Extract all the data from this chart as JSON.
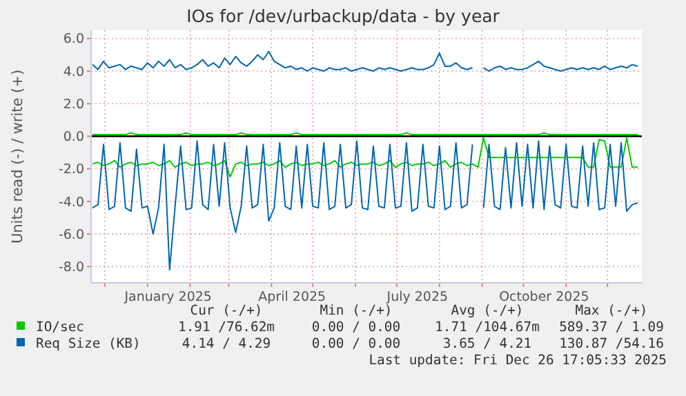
{
  "chart_data": {
    "type": "line",
    "title": "IOs for /dev/urbackup/data - by year",
    "ylabel": "Units read (-) / write (+)",
    "x": [
      "2024-11-22",
      "2024-11-26",
      "2024-11-30",
      "2024-12-04",
      "2024-12-08",
      "2024-12-12",
      "2024-12-16",
      "2024-12-20",
      "2024-12-24",
      "2024-12-28",
      "2025-01-01",
      "2025-01-05",
      "2025-01-09",
      "2025-01-13",
      "2025-01-17",
      "2025-01-21",
      "2025-01-25",
      "2025-01-29",
      "2025-02-02",
      "2025-02-06",
      "2025-02-10",
      "2025-02-14",
      "2025-02-18",
      "2025-02-22",
      "2025-02-26",
      "2025-03-02",
      "2025-03-06",
      "2025-03-10",
      "2025-03-14",
      "2025-03-18",
      "2025-03-22",
      "2025-03-26",
      "2025-03-30",
      "2025-04-03",
      "2025-04-07",
      "2025-04-11",
      "2025-04-15",
      "2025-04-19",
      "2025-04-23",
      "2025-04-27",
      "2025-05-01",
      "2025-05-05",
      "2025-05-09",
      "2025-05-13",
      "2025-05-17",
      "2025-05-21",
      "2025-05-25",
      "2025-05-29",
      "2025-06-02",
      "2025-06-06",
      "2025-06-10",
      "2025-06-14",
      "2025-06-18",
      "2025-06-22",
      "2025-06-26",
      "2025-06-30",
      "2025-07-04",
      "2025-07-08",
      "2025-07-12",
      "2025-07-16",
      "2025-07-20",
      "2025-07-24",
      "2025-07-28",
      "2025-08-01",
      "2025-08-05",
      "2025-08-09",
      "2025-08-13",
      "2025-08-17",
      "2025-08-21",
      "2025-08-25",
      "2025-08-29",
      "2025-09-02",
      "2025-09-06",
      "2025-09-10",
      "2025-09-14",
      "2025-09-18",
      "2025-09-22",
      "2025-09-26",
      "2025-09-30",
      "2025-10-04",
      "2025-10-08",
      "2025-10-12",
      "2025-10-16",
      "2025-10-20",
      "2025-10-24",
      "2025-10-28",
      "2025-11-01",
      "2025-11-05",
      "2025-11-09",
      "2025-11-13",
      "2025-11-17",
      "2025-11-21",
      "2025-11-25",
      "2025-11-29",
      "2025-12-03",
      "2025-12-07",
      "2025-12-11",
      "2025-12-15",
      "2025-12-19",
      "2025-12-23"
    ],
    "series": [
      {
        "name": "IO/sec",
        "color": "#00cc00",
        "values": [
          0.1,
          0.1,
          0.1,
          0.1,
          0.1,
          0.1,
          0.1,
          0.2,
          0.1,
          0.1,
          0.1,
          0.1,
          0.1,
          0.1,
          0.1,
          0.1,
          0.1,
          0.2,
          0.1,
          0.1,
          0.1,
          0.1,
          0.1,
          0.1,
          0.1,
          0.1,
          0.1,
          0.2,
          0.1,
          0.1,
          0.1,
          0.1,
          0.1,
          0.1,
          0.1,
          0.1,
          0.1,
          0.2,
          0.1,
          0.1,
          0.1,
          0.1,
          0.1,
          0.1,
          0.1,
          0.1,
          0.1,
          0.1,
          0.1,
          0.1,
          0.1,
          0.1,
          0.1,
          0.1,
          0.1,
          0.1,
          0.1,
          0.2,
          0.1,
          0.1,
          0.1,
          0.1,
          0.1,
          0.1,
          0.1,
          0.1,
          0.1,
          0.1,
          0.1,
          0.1,
          0.1,
          0.1,
          0.1,
          0.1,
          0.1,
          0.1,
          0.1,
          0.1,
          0.1,
          0.1,
          0.1,
          0.1,
          0.2,
          0.1,
          0.1,
          0.1,
          0.1,
          0.1,
          0.1,
          0.1,
          0.1,
          0.1,
          0.1,
          0.1,
          0.1,
          0.1,
          0.1,
          0.1,
          0.1,
          0.1
        ]
      },
      {
        "color": "#00cc00",
        "values": [
          -1.7,
          -1.6,
          -1.8,
          -1.7,
          -1.5,
          -1.9,
          -1.7,
          -1.6,
          -1.8,
          -1.7,
          -1.7,
          -1.6,
          -1.8,
          -1.7,
          -1.5,
          -1.9,
          -1.7,
          -1.6,
          -1.8,
          -1.7,
          -1.7,
          -1.6,
          -1.8,
          -1.7,
          -1.5,
          -2.5,
          -1.7,
          -1.6,
          -1.8,
          -1.7,
          -1.7,
          -1.6,
          -1.8,
          -1.7,
          -1.5,
          -1.9,
          -1.7,
          -1.6,
          -1.8,
          -1.7,
          -1.7,
          -1.6,
          -1.8,
          -1.7,
          -1.5,
          -1.9,
          -1.7,
          -1.6,
          -1.8,
          -1.7,
          -1.7,
          -1.6,
          -1.8,
          -1.7,
          -1.5,
          -1.9,
          -1.7,
          -1.6,
          -1.8,
          -1.7,
          -1.7,
          -1.6,
          -1.8,
          -1.7,
          -1.5,
          -1.9,
          -1.7,
          -1.6,
          -1.8,
          -1.7,
          -1.9,
          -0.1,
          -1.3,
          -1.3,
          -1.3,
          -1.3,
          -1.3,
          -1.3,
          -1.3,
          -1.3,
          -1.3,
          -1.3,
          -1.3,
          -1.3,
          -1.3,
          -1.3,
          -1.3,
          -1.3,
          -1.3,
          -1.3,
          -1.9,
          -1.9,
          -0.2,
          -0.3,
          -1.9,
          -1.9,
          -1.9,
          -0.1,
          -1.9,
          -1.9
        ]
      },
      {
        "name": "Req Size (KB)",
        "color": "#0066b3",
        "values": [
          4.4,
          4.1,
          4.6,
          4.2,
          4.3,
          4.4,
          4.1,
          4.3,
          4.2,
          4.1,
          4.5,
          4.2,
          4.6,
          4.3,
          4.7,
          4.2,
          4.4,
          4.1,
          4.2,
          4.4,
          4.7,
          4.3,
          4.5,
          4.2,
          4.8,
          4.4,
          4.9,
          4.5,
          4.3,
          4.6,
          5.0,
          4.7,
          5.2,
          4.6,
          4.4,
          4.2,
          4.3,
          4.1,
          4.2,
          4.0,
          4.2,
          4.1,
          4.0,
          4.2,
          4.1,
          4.1,
          4.2,
          4.0,
          4.1,
          4.2,
          4.1,
          4.0,
          4.2,
          4.1,
          4.2,
          4.1,
          4.0,
          4.1,
          4.2,
          4.1,
          4.1,
          4.2,
          4.4,
          5.1,
          4.3,
          4.3,
          4.5,
          4.2,
          4.1,
          4.2,
          null,
          4.2,
          4.0,
          4.2,
          4.3,
          4.1,
          4.2,
          4.1,
          4.1,
          4.2,
          4.4,
          4.6,
          4.3,
          4.2,
          4.1,
          4.0,
          4.1,
          4.2,
          4.1,
          4.2,
          4.1,
          4.2,
          4.1,
          4.3,
          4.1,
          4.2,
          4.3,
          4.2,
          4.4,
          4.3
        ]
      },
      {
        "color": "#0066b3",
        "values": [
          -4.4,
          -4.2,
          -0.5,
          -4.5,
          -4.3,
          -0.4,
          -4.4,
          -4.6,
          -0.8,
          -4.4,
          -4.3,
          -6.0,
          -4.4,
          -0.5,
          -8.2,
          -4.3,
          -0.6,
          -4.5,
          -4.4,
          -0.3,
          -4.2,
          -4.5,
          -0.5,
          -4.3,
          -0.4,
          -4.4,
          -5.9,
          -4.3,
          -0.6,
          -4.4,
          -4.2,
          -0.5,
          -5.2,
          -4.4,
          -0.4,
          -4.3,
          -4.5,
          -0.6,
          -4.4,
          -0.5,
          -4.3,
          -4.4,
          -0.4,
          -4.5,
          -4.3,
          -0.5,
          -4.4,
          -4.2,
          -0.3,
          -4.4,
          -4.5,
          -0.6,
          -4.3,
          -4.4,
          -0.5,
          -4.4,
          -4.3,
          -0.4,
          -4.6,
          -4.4,
          -0.5,
          -4.3,
          -4.4,
          -0.6,
          -4.5,
          -4.3,
          -0.4,
          -4.4,
          -4.2,
          -0.5,
          null,
          -4.4,
          -0.5,
          -4.3,
          -4.5,
          -0.7,
          -4.4,
          -0.4,
          -4.3,
          -0.5,
          -4.4,
          -0.3,
          -4.5,
          -0.6,
          -4.2,
          -4.4,
          -0.5,
          -4.3,
          -4.4,
          -0.6,
          -4.3,
          -0.4,
          -4.5,
          -4.4,
          -0.5,
          -4.3,
          -0.4,
          -4.6,
          -4.2,
          -4.1
        ]
      }
    ],
    "xlim": [
      "2024-11-21",
      "2025-12-26"
    ],
    "xticks": [
      {
        "value": "2024-12-01",
        "label": null
      },
      {
        "value": "2025-01-01",
        "label": null
      },
      {
        "value": "2025-02-01",
        "label": null
      },
      {
        "value": "2025-03-01",
        "label": null
      },
      {
        "value": "2025-04-01",
        "label": null
      },
      {
        "value": "2025-05-01",
        "label": null
      },
      {
        "value": "2025-06-01",
        "label": null
      },
      {
        "value": "2025-07-01",
        "label": null
      },
      {
        "value": "2025-08-01",
        "label": null
      },
      {
        "value": "2025-09-01",
        "label": null
      },
      {
        "value": "2025-10-01",
        "label": null
      },
      {
        "value": "2025-11-01",
        "label": null
      },
      {
        "value": "2025-12-01",
        "label": null
      },
      {
        "value": "2025-01-16",
        "label": "January 2025"
      },
      {
        "value": "2025-04-16",
        "label": "April 2025"
      },
      {
        "value": "2025-07-16",
        "label": "July 2025"
      },
      {
        "value": "2025-10-16",
        "label": "October 2025"
      }
    ],
    "ylim": [
      -9,
      6.5
    ],
    "yticks": [
      {
        "value": 6,
        "label": "6.0"
      },
      {
        "value": 4,
        "label": "4.0"
      },
      {
        "value": 2,
        "label": "2.0"
      },
      {
        "value": 0,
        "label": "0.0"
      },
      {
        "value": -2,
        "label": "-2.0"
      },
      {
        "value": -4,
        "label": "-4.0"
      },
      {
        "value": -6,
        "label": "-6.0"
      },
      {
        "value": -8,
        "label": "-8.0"
      }
    ],
    "grid": true,
    "legend": "bottom left",
    "ref_lines": [
      {
        "axis": "y",
        "value": 0,
        "color": "#000000"
      }
    ],
    "annotations": [
      "Cur (-/+)",
      "Min (-/+)",
      "Avg (-/+)",
      "Max (-/+)",
      "1.91 /76.62m",
      "0.00 / 0.00",
      "1.71 /104.67m",
      "589.37 / 1.09",
      "4.14 / 4.29",
      "0.00 / 0.00",
      "3.65 / 4.21",
      "130.87 /54.16",
      "Last update: Fri Dec 26 17:05:33 2025"
    ]
  }
}
